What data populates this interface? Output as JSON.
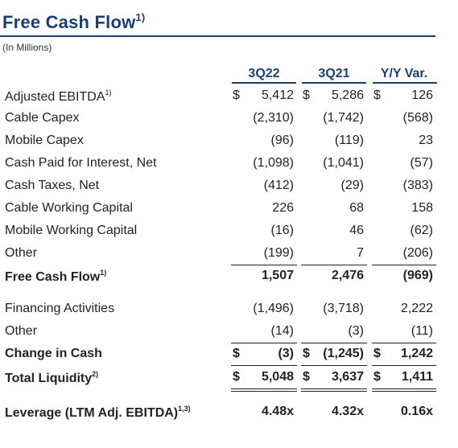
{
  "title": "Free Cash Flow",
  "title_sup": "1)",
  "subtitle": "(In Millions)",
  "columns": [
    "3Q22",
    "3Q21",
    "Y/Y Var."
  ],
  "rows": [
    {
      "label": "Adjusted EBITDA",
      "sup": "1)",
      "values": [
        "5,412",
        "5,286",
        "126"
      ],
      "currency": [
        "$",
        "$",
        "$"
      ]
    },
    {
      "label": "Cable Capex",
      "sup": "",
      "values": [
        "(2,310)",
        "(1,742)",
        "(568)"
      ],
      "currency": [
        "",
        "",
        ""
      ]
    },
    {
      "label": "Mobile Capex",
      "sup": "",
      "values": [
        "(96)",
        "(119)",
        "23"
      ],
      "currency": [
        "",
        "",
        ""
      ]
    },
    {
      "label": "Cash Paid for Interest, Net",
      "sup": "",
      "values": [
        "(1,098)",
        "(1,041)",
        "(57)"
      ],
      "currency": [
        "",
        "",
        ""
      ]
    },
    {
      "label": "Cash Taxes, Net",
      "sup": "",
      "values": [
        "(412)",
        "(29)",
        "(383)"
      ],
      "currency": [
        "",
        "",
        ""
      ]
    },
    {
      "label": "Cable Working Capital",
      "sup": "",
      "values": [
        "226",
        "68",
        "158"
      ],
      "currency": [
        "",
        "",
        ""
      ]
    },
    {
      "label": "Mobile Working Capital",
      "sup": "",
      "values": [
        "(16)",
        "46",
        "(62)"
      ],
      "currency": [
        "",
        "",
        ""
      ]
    },
    {
      "label": "Other",
      "sup": "",
      "values": [
        "(199)",
        "7",
        "(206)"
      ],
      "currency": [
        "",
        "",
        ""
      ]
    },
    {
      "label": "Free Cash Flow",
      "sup": "1)",
      "values": [
        "1,507",
        "2,476",
        "(969)"
      ],
      "currency": [
        "",
        "",
        ""
      ]
    },
    {
      "label": "Financing Activities",
      "sup": "",
      "values": [
        "(1,496)",
        "(3,718)",
        "2,222"
      ],
      "currency": [
        "",
        "",
        ""
      ]
    },
    {
      "label": "Other",
      "sup": "",
      "values": [
        "(14)",
        "(3)",
        "(11)"
      ],
      "currency": [
        "",
        "",
        ""
      ]
    },
    {
      "label": "Change in Cash",
      "sup": "",
      "values": [
        "(3)",
        "(1,245)",
        "1,242"
      ],
      "currency": [
        "$",
        "$",
        "$"
      ]
    },
    {
      "label": "Total Liquidity",
      "sup": "2)",
      "values": [
        "5,048",
        "3,637",
        "1,411"
      ],
      "currency": [
        "$",
        "$",
        "$"
      ]
    },
    {
      "label": "Leverage (LTM Adj. EBITDA)",
      "sup": "1,3)",
      "values": [
        "4.48x",
        "4.32x",
        "0.16x"
      ],
      "currency": [
        "",
        "",
        ""
      ]
    }
  ]
}
